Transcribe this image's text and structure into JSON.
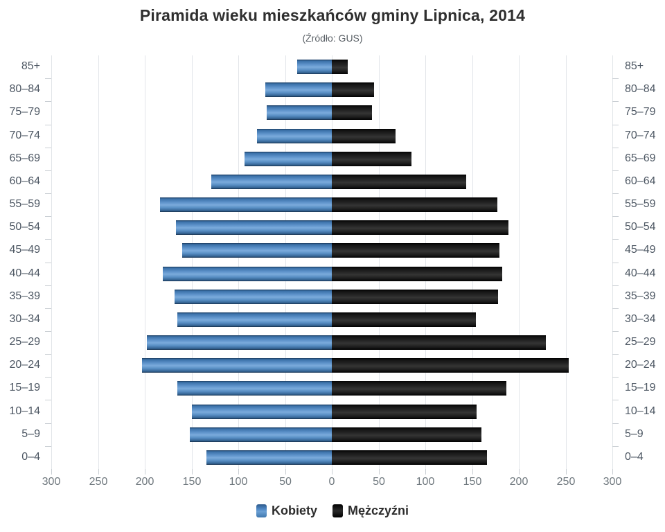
{
  "title": "Piramida wieku mieszkańców gminy Lipnica, 2014",
  "subtitle": "(Źródło: GUS)",
  "colors": {
    "women_bar": "#4e87c3",
    "men_bar": "#141414",
    "gridline": "#e2e5e9",
    "axis_tick": "#c9ced3",
    "category_label": "#4d5763",
    "axis_number_label": "#6e777d",
    "title_text": "#2f2f2f",
    "subtitle_text": "#5a6066"
  },
  "chart_data": {
    "type": "bar",
    "variant": "population-pyramid",
    "title": "Piramida wieku mieszkańców gminy Lipnica, 2014",
    "subtitle": "(Źródło: GUS)",
    "categories": [
      "85+",
      "80–84",
      "75–79",
      "70–74",
      "65–69",
      "60–64",
      "55–59",
      "50–54",
      "45–49",
      "40–44",
      "35–39",
      "30–34",
      "25–29",
      "20–24",
      "15–19",
      "10–14",
      "5–9",
      "0–4"
    ],
    "series": [
      {
        "name": "Kobiety",
        "side": "left",
        "color": "#4e87c3",
        "values": [
          37,
          71,
          70,
          80,
          93,
          129,
          184,
          167,
          160,
          181,
          168,
          165,
          198,
          203,
          165,
          150,
          152,
          134
        ]
      },
      {
        "name": "Mężczyźni",
        "side": "right",
        "color": "#141414",
        "values": [
          17,
          45,
          43,
          68,
          85,
          144,
          177,
          189,
          179,
          182,
          178,
          154,
          229,
          253,
          187,
          155,
          160,
          166
        ]
      }
    ],
    "x_ticks": [
      "300",
      "250",
      "200",
      "150",
      "100",
      "50",
      "0",
      "50",
      "100",
      "150",
      "200",
      "250",
      "300"
    ],
    "xlim_each_side": 300,
    "grid": true,
    "legend_position": "bottom"
  }
}
